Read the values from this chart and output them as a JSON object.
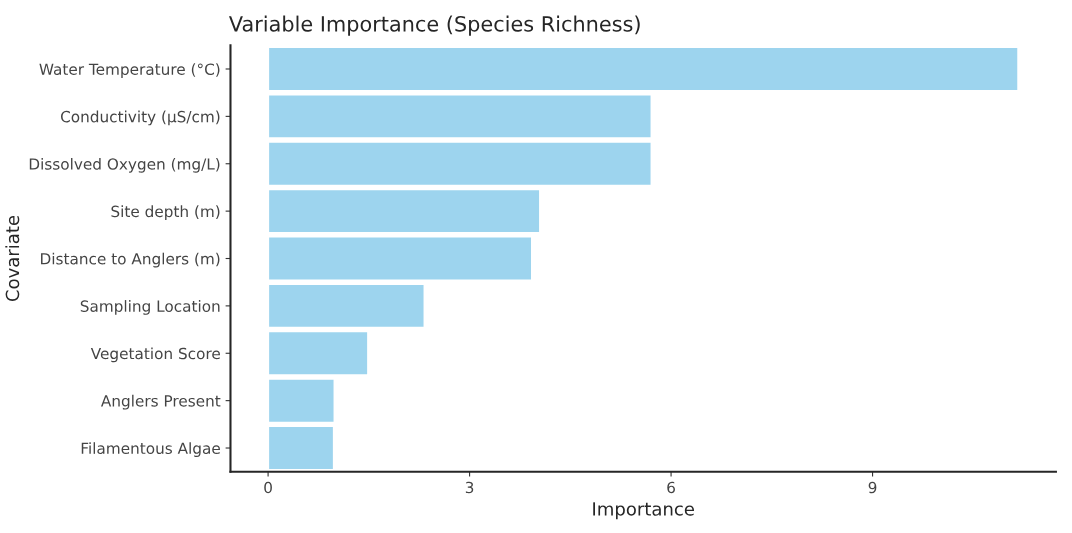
{
  "chart_data": {
    "type": "bar",
    "orientation": "horizontal",
    "title": "Variable Importance (Species Richness)",
    "xlabel": "Importance",
    "ylabel": "Covariate",
    "categories": [
      "Water Temperature (°C)",
      "Conductivity (μS/cm)",
      "Dissolved Oxygen (mg/L)",
      "Site depth (m)",
      "Distance to Anglers (m)",
      "Sampling Location",
      "Vegetation Score",
      "Anglers Present",
      "Filamentous Algae"
    ],
    "values": [
      11.17,
      5.71,
      5.71,
      4.05,
      3.93,
      2.33,
      1.49,
      0.99,
      0.98
    ],
    "color": "#9dd4ee",
    "xlim": [
      -0.56,
      11.73
    ],
    "xticks": [
      0,
      3,
      6,
      9
    ],
    "grid": false,
    "legend": false
  }
}
